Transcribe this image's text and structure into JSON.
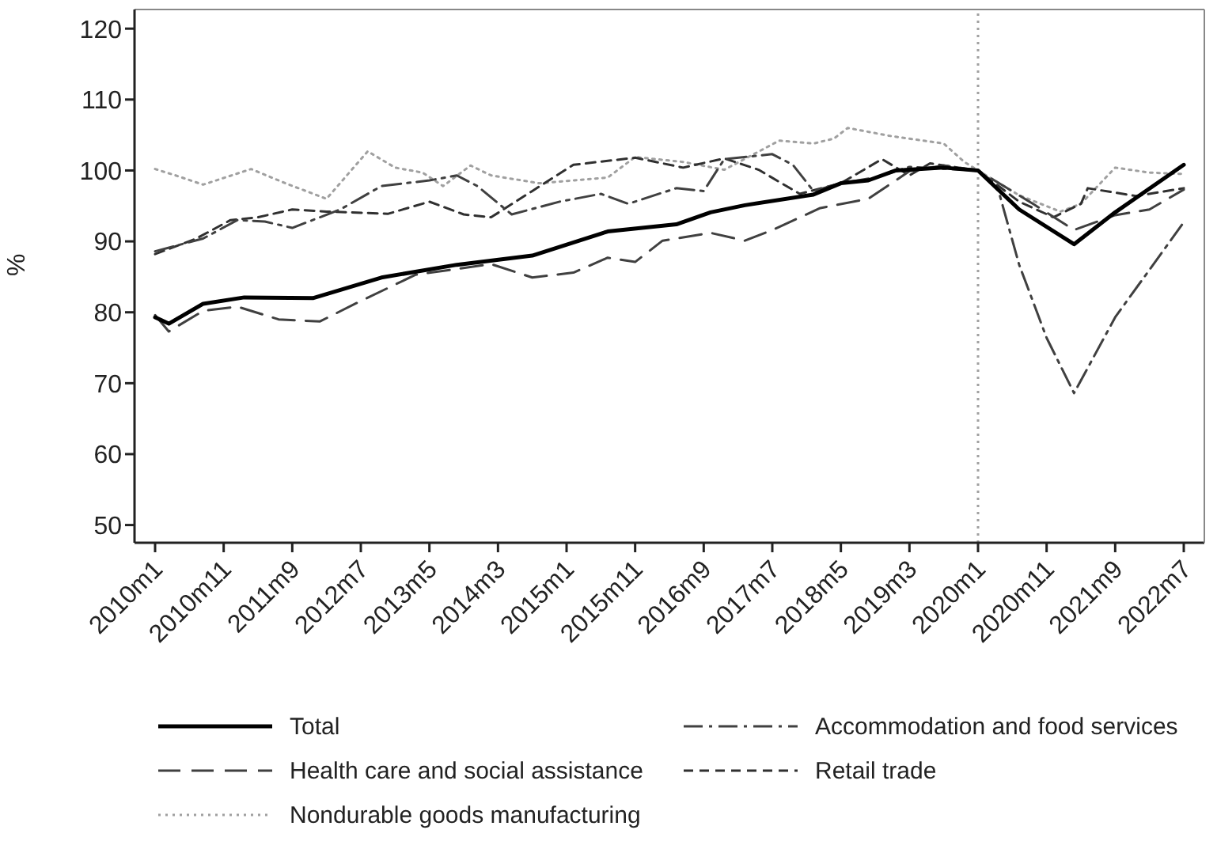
{
  "chart_data": {
    "type": "line",
    "ylabel": "%",
    "legend": "bottom",
    "grid": false,
    "marker": "none",
    "xlim": [
      "2009-10",
      "2022-10"
    ],
    "ylim": [
      47.5,
      122.7
    ],
    "xticks": [
      {
        "value": "2010-01",
        "label": "2010m1"
      },
      {
        "value": "2010-11",
        "label": "2010m11"
      },
      {
        "value": "2011-09",
        "label": "2011m9"
      },
      {
        "value": "2012-07",
        "label": "2012m7"
      },
      {
        "value": "2013-05",
        "label": "2013m5"
      },
      {
        "value": "2014-03",
        "label": "2014m3"
      },
      {
        "value": "2015-01",
        "label": "2015m1"
      },
      {
        "value": "2015-11",
        "label": "2015m11"
      },
      {
        "value": "2016-09",
        "label": "2016m9"
      },
      {
        "value": "2017-07",
        "label": "2017m7"
      },
      {
        "value": "2018-05",
        "label": "2018m5"
      },
      {
        "value": "2019-03",
        "label": "2019m3"
      },
      {
        "value": "2020-01",
        "label": "2020m1"
      },
      {
        "value": "2020-11",
        "label": "2020m11"
      },
      {
        "value": "2021-09",
        "label": "2021m9"
      },
      {
        "value": "2022-07",
        "label": "2022m7"
      }
    ],
    "yticks": [
      50,
      60,
      70,
      80,
      90,
      100,
      110,
      120
    ],
    "ref_lines": [
      {
        "axis": "x",
        "value": "2020-01",
        "color": "#a0a0a0",
        "line_style": "dotted"
      }
    ],
    "series": [
      {
        "name": "Total",
        "color": "#000000",
        "line_style": "solid",
        "x": [
          "2010-01",
          "2010-03",
          "2010-08",
          "2011-02",
          "2011-12",
          "2012-10",
          "2013-09",
          "2014-08",
          "2015-07",
          "2016-05",
          "2016-10",
          "2017-03",
          "2018-01",
          "2018-05",
          "2018-09",
          "2019-01",
          "2019-08",
          "2020-01",
          "2020-07",
          "2021-03",
          "2021-09",
          "2022-07"
        ],
        "values": [
          79.3,
          78.4,
          81.2,
          82.1,
          82,
          84.9,
          86.7,
          88,
          91.4,
          92.4,
          94.1,
          95.1,
          96.6,
          98.2,
          98.6,
          100,
          100.4,
          100,
          94.5,
          89.6,
          94.1,
          100.8
        ]
      },
      {
        "name": "Accommodation and food services",
        "color": "#404040",
        "line_style": "dashdot",
        "x": [
          "2010-01",
          "2010-08",
          "2011-01",
          "2011-05",
          "2011-09",
          "2012-04",
          "2012-10",
          "2013-05",
          "2013-09",
          "2013-12",
          "2014-05",
          "2014-12",
          "2015-06",
          "2015-10",
          "2016-05",
          "2016-09",
          "2016-12",
          "2017-07",
          "2017-10",
          "2018-01",
          "2018-05",
          "2018-10",
          "2019-03",
          "2020-01",
          "2020-04",
          "2020-07",
          "2020-11",
          "2021-03",
          "2021-09",
          "2022-07"
        ],
        "values": [
          88.6,
          90.4,
          93,
          92.8,
          91.9,
          94.5,
          97.8,
          98.6,
          99.3,
          97.8,
          93.8,
          95.6,
          96.7,
          95.3,
          97.5,
          97.1,
          101.6,
          102.3,
          100.8,
          97.1,
          98.2,
          99,
          100.5,
          100,
          97.1,
          86.7,
          76.4,
          68.6,
          79.3,
          92.7
        ]
      },
      {
        "name": "Health care and social assistance",
        "color": "#404040",
        "line_style": "longdash",
        "x": [
          "2010-01",
          "2010-03",
          "2010-08",
          "2011-01",
          "2011-07",
          "2012-01",
          "2012-07",
          "2013-03",
          "2014-02",
          "2014-08",
          "2015-02",
          "2015-07",
          "2015-11",
          "2016-03",
          "2016-10",
          "2017-03",
          "2017-07",
          "2018-02",
          "2018-09",
          "2019-03",
          "2019-08",
          "2020-01",
          "2020-09",
          "2021-03",
          "2021-09",
          "2022-02",
          "2022-07"
        ],
        "values": [
          79.6,
          77.3,
          80.2,
          80.8,
          79,
          78.7,
          81.6,
          85.3,
          86.8,
          84.9,
          85.6,
          87.7,
          87.1,
          90.1,
          91.2,
          90.1,
          91.6,
          94.7,
          96,
          99.9,
          100.7,
          100,
          95.3,
          91.6,
          93.7,
          94.5,
          97.3
        ]
      },
      {
        "name": "Retail trade",
        "color": "#303030",
        "line_style": "dashed",
        "x": [
          "2010-01",
          "2010-07",
          "2010-12",
          "2011-04",
          "2011-09",
          "2012-02",
          "2012-11",
          "2013-05",
          "2013-10",
          "2014-02",
          "2014-08",
          "2015-02",
          "2015-11",
          "2016-06",
          "2016-12",
          "2017-05",
          "2017-11",
          "2018-05",
          "2018-11",
          "2019-03",
          "2019-06",
          "2020-01",
          "2020-07",
          "2020-12",
          "2021-04",
          "2021-05",
          "2021-12",
          "2022-07"
        ],
        "values": [
          88.2,
          90.4,
          93,
          93.4,
          94.5,
          94.2,
          93.9,
          95.6,
          93.8,
          93.4,
          97.1,
          100.8,
          101.8,
          100.4,
          101.7,
          100.1,
          96.7,
          98.2,
          101.6,
          99.3,
          101,
          100,
          95.6,
          93.4,
          95.3,
          97.5,
          96.4,
          97.5
        ]
      },
      {
        "name": "Nondurable goods manufacturing",
        "color": "#a0a0a0",
        "line_style": "dotted",
        "x": [
          "2010-01",
          "2010-04",
          "2010-08",
          "2011-03",
          "2011-08",
          "2012-02",
          "2012-08",
          "2012-12",
          "2013-04",
          "2013-07",
          "2013-11",
          "2014-02",
          "2014-09",
          "2015-02",
          "2015-07",
          "2015-11",
          "2016-06",
          "2016-12",
          "2017-08",
          "2018-01",
          "2018-04",
          "2018-06",
          "2018-12",
          "2019-08",
          "2019-11",
          "2020-01",
          "2020-07",
          "2021-01",
          "2021-04",
          "2021-09",
          "2022-02",
          "2022-07"
        ],
        "values": [
          100.2,
          99.3,
          98,
          100.2,
          98.2,
          96,
          102.7,
          100.4,
          99.7,
          97.8,
          100.7,
          99.3,
          98.2,
          98.6,
          99,
          101.9,
          101.2,
          100.1,
          104.2,
          103.8,
          104.5,
          106,
          104.9,
          103.8,
          101.2,
          100,
          96.5,
          94.2,
          95.3,
          100.4,
          99.7,
          99.5
        ]
      }
    ]
  }
}
